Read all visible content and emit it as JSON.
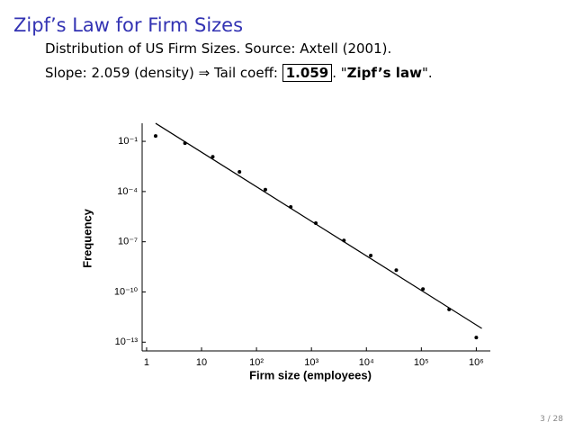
{
  "slide": {
    "title": "Zipf’s Law for Firm Sizes",
    "line1": "Distribution of US Firm Sizes. Source: Axtell (2001).",
    "line2_start": "Slope: 2.059 (density) ⇒ Tail coeff: ",
    "line2_boxed": "1.059",
    "line2_mid": ". \"",
    "line2_bold": "Zipf’s law",
    "line2_end": "\".",
    "page": "3 / 28"
  },
  "chart_data": {
    "type": "scatter",
    "xlabel": "Firm size (employees)",
    "ylabel": "Frequency",
    "xscale": "log",
    "yscale": "log",
    "xlim": [
      0.83,
      1800000
    ],
    "ylim": [
      3e-14,
      1.2
    ],
    "xticks": [
      1,
      10,
      {
        "value": 100,
        "label": "10²"
      },
      {
        "value": 1000,
        "label": "10³"
      },
      {
        "value": 10000,
        "label": "10⁴"
      },
      {
        "value": 100000,
        "label": "10⁵"
      },
      {
        "value": 1000000,
        "label": "10⁶"
      }
    ],
    "yticks": [
      {
        "value": 0.1,
        "label": "10⁻¹"
      },
      {
        "value": 0.0001,
        "label": "10⁻⁴"
      },
      {
        "value": 1e-07,
        "label": "10⁻⁷"
      },
      {
        "value": 1e-10,
        "label": "10⁻¹⁰"
      },
      {
        "value": 1e-13,
        "label": "10⁻¹³"
      }
    ],
    "color": "#000000",
    "x": [
      1.46,
      5,
      16,
      49,
      145,
      420,
      1200,
      3900,
      12000,
      35000,
      107000,
      320000,
      1000000
    ],
    "values": [
      0.21,
      0.078,
      0.012,
      0.0015,
      0.00013,
      1.2e-05,
      1.3e-06,
      1.2e-07,
      1.5e-08,
      2e-09,
      1.5e-10,
      9e-12,
      1.9e-13
    ],
    "fit": {
      "x": [
        1.46,
        1260000
      ],
      "values": [
        1.19,
        6.6e-13
      ]
    }
  }
}
